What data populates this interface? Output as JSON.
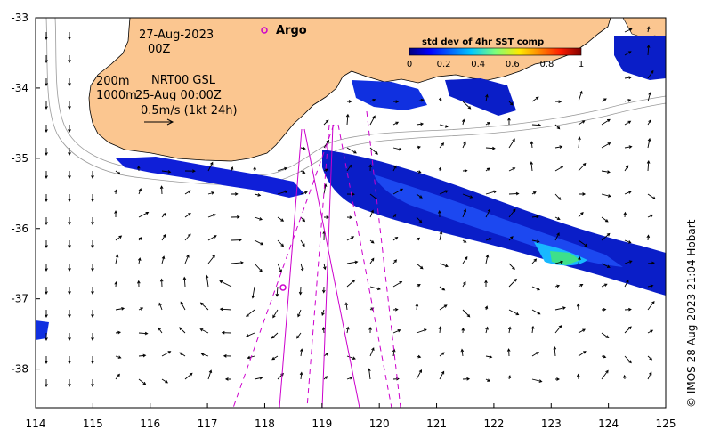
{
  "date_label": "27-Aug-2023",
  "time_label": "00Z",
  "argo_label": "Argo",
  "depth_label_1": "200m",
  "depth_label_2": "1000m",
  "product_label": "NRT00 GSL",
  "product_time": "25-Aug 00:00Z",
  "scale_label": "0.5m/s (1kt 24h)",
  "colorbar": {
    "title": "std dev of 4hr SST comp",
    "ticks": [
      "0",
      "0.2",
      "0.4",
      "0.6",
      "0.8",
      "1"
    ],
    "min": 0,
    "max": 1
  },
  "copyright": "© IMOS 28-Aug-2023 21:04 Hobart",
  "axes": {
    "x_ticks": [
      "114",
      "115",
      "116",
      "117",
      "118",
      "119",
      "120",
      "121",
      "122",
      "123",
      "124",
      "125"
    ],
    "y_ticks": [
      "-33",
      "-34",
      "-35",
      "-36",
      "-37",
      "-38"
    ],
    "lon_range": [
      114,
      125
    ],
    "lat_range": [
      -38.55,
      -33
    ]
  },
  "colors": {
    "land": "#fbc690",
    "track": "#cc00cc",
    "contour": "#999999"
  }
}
